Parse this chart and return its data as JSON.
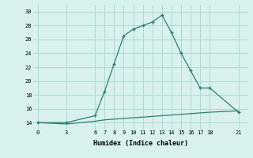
{
  "xlabel": "Humidex (Indice chaleur)",
  "x_values": [
    0,
    3,
    6,
    7,
    8,
    9,
    10,
    11,
    12,
    13,
    14,
    15,
    16,
    17,
    18,
    21
  ],
  "y_values": [
    14,
    14,
    15,
    18.5,
    22.5,
    26.5,
    27.5,
    28,
    28.5,
    29.5,
    27,
    24,
    21.5,
    19,
    19,
    15.5
  ],
  "x_values2": [
    0,
    3,
    6,
    7,
    8,
    9,
    10,
    11,
    12,
    13,
    14,
    15,
    16,
    17,
    18,
    21
  ],
  "y_values2": [
    14,
    13.8,
    14.2,
    14.4,
    14.5,
    14.6,
    14.7,
    14.8,
    14.9,
    15.0,
    15.1,
    15.2,
    15.3,
    15.4,
    15.5,
    15.7
  ],
  "y_min": 13,
  "y_max": 31,
  "y_ticks": [
    14,
    16,
    18,
    20,
    22,
    24,
    26,
    28,
    30
  ],
  "x_ticks": [
    0,
    3,
    6,
    7,
    8,
    9,
    10,
    11,
    12,
    13,
    14,
    15,
    16,
    17,
    18,
    21
  ],
  "line_color": "#2e7d6e",
  "bg_color": "#d8f0ee",
  "grid_color": "#a8d8d0",
  "font_family": "monospace"
}
